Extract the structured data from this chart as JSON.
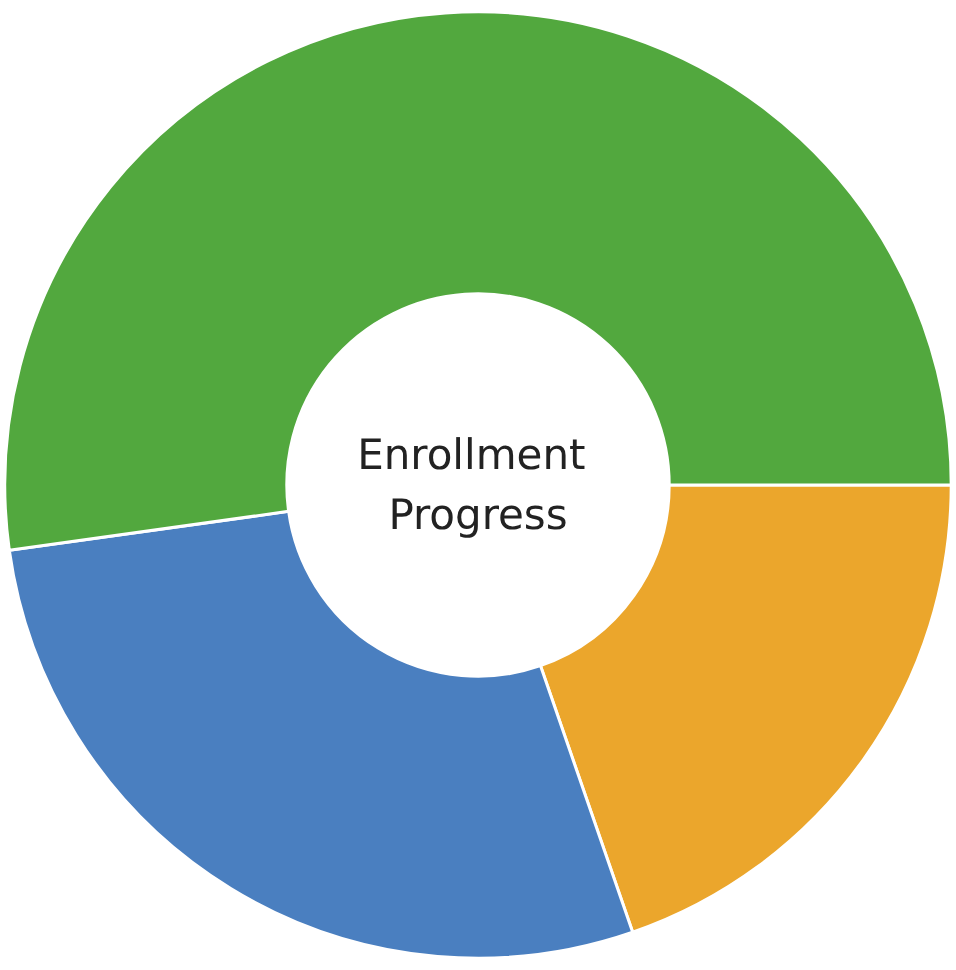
{
  "chart_data": {
    "type": "donut",
    "title": "Enrollment Progress",
    "categories": [
      null,
      null,
      null
    ],
    "values": [
      19.7,
      28.1,
      52.2
    ],
    "colors": [
      "#eba62c",
      "#4a7fc0",
      "#52a83e"
    ]
  }
}
